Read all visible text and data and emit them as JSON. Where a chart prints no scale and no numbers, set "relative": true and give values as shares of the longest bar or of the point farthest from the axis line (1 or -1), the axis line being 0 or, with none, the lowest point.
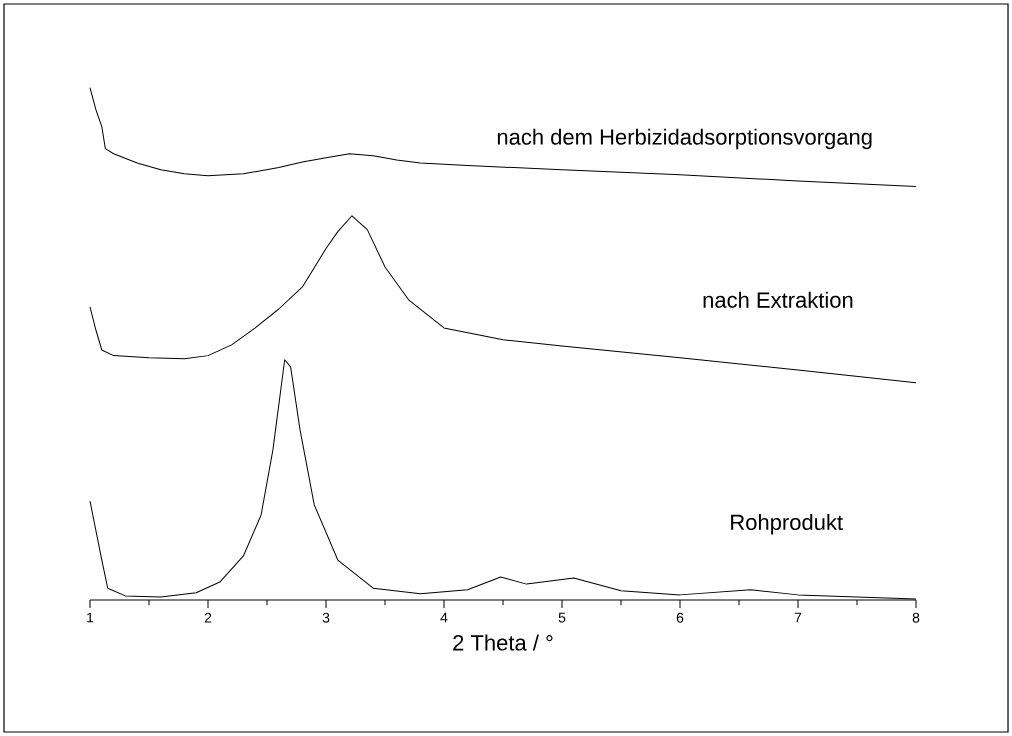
{
  "chart_data": {
    "type": "line",
    "xlabel": "2 Theta / °",
    "relative": true,
    "tick_labels": "x",
    "xlim": [
      1,
      8
    ],
    "xticks": [
      1,
      2,
      3,
      4,
      5,
      6,
      7,
      8
    ],
    "marker": "none",
    "line_style": "solid",
    "series": [
      {
        "name": "nach dem Herbizidadsorptionsvorgang",
        "color": "#000000",
        "x": [
          1.0,
          1.05,
          1.1,
          1.13,
          1.2,
          1.4,
          1.6,
          1.8,
          2.0,
          2.3,
          2.6,
          2.8,
          3.0,
          3.2,
          3.4,
          3.6,
          3.8,
          4.2,
          5,
          6,
          7,
          8
        ],
        "values": [
          1.0,
          0.957,
          0.924,
          0.881,
          0.871,
          0.853,
          0.84,
          0.832,
          0.828,
          0.832,
          0.844,
          0.855,
          0.863,
          0.871,
          0.867,
          0.859,
          0.853,
          0.848,
          0.84,
          0.83,
          0.818,
          0.807
        ]
      },
      {
        "name": "nach Extraktion",
        "color": "#000000",
        "x": [
          1.0,
          1.05,
          1.1,
          1.2,
          1.5,
          1.8,
          2.0,
          2.2,
          2.4,
          2.6,
          2.8,
          3.0,
          3.1,
          3.22,
          3.35,
          3.5,
          3.7,
          4.0,
          4.5,
          5,
          6,
          7,
          8
        ],
        "values": [
          0.572,
          0.527,
          0.488,
          0.477,
          0.473,
          0.471,
          0.477,
          0.498,
          0.531,
          0.568,
          0.611,
          0.686,
          0.719,
          0.75,
          0.723,
          0.65,
          0.586,
          0.531,
          0.508,
          0.496,
          0.473,
          0.449,
          0.424
        ]
      },
      {
        "name": "Rohprodukt",
        "color": "#000000",
        "x": [
          1.0,
          1.1,
          1.15,
          1.3,
          1.6,
          1.9,
          2.1,
          2.3,
          2.45,
          2.55,
          2.65,
          2.7,
          2.78,
          2.9,
          3.1,
          3.4,
          3.8,
          4.2,
          4.48,
          4.7,
          5.1,
          5.5,
          6,
          6.6,
          7,
          8
        ],
        "values": [
          0.193,
          0.078,
          0.023,
          0.008,
          0.006,
          0.014,
          0.035,
          0.086,
          0.166,
          0.293,
          0.469,
          0.455,
          0.332,
          0.186,
          0.078,
          0.023,
          0.012,
          0.02,
          0.045,
          0.031,
          0.043,
          0.018,
          0.01,
          0.02,
          0.01,
          0.002
        ]
      }
    ]
  }
}
